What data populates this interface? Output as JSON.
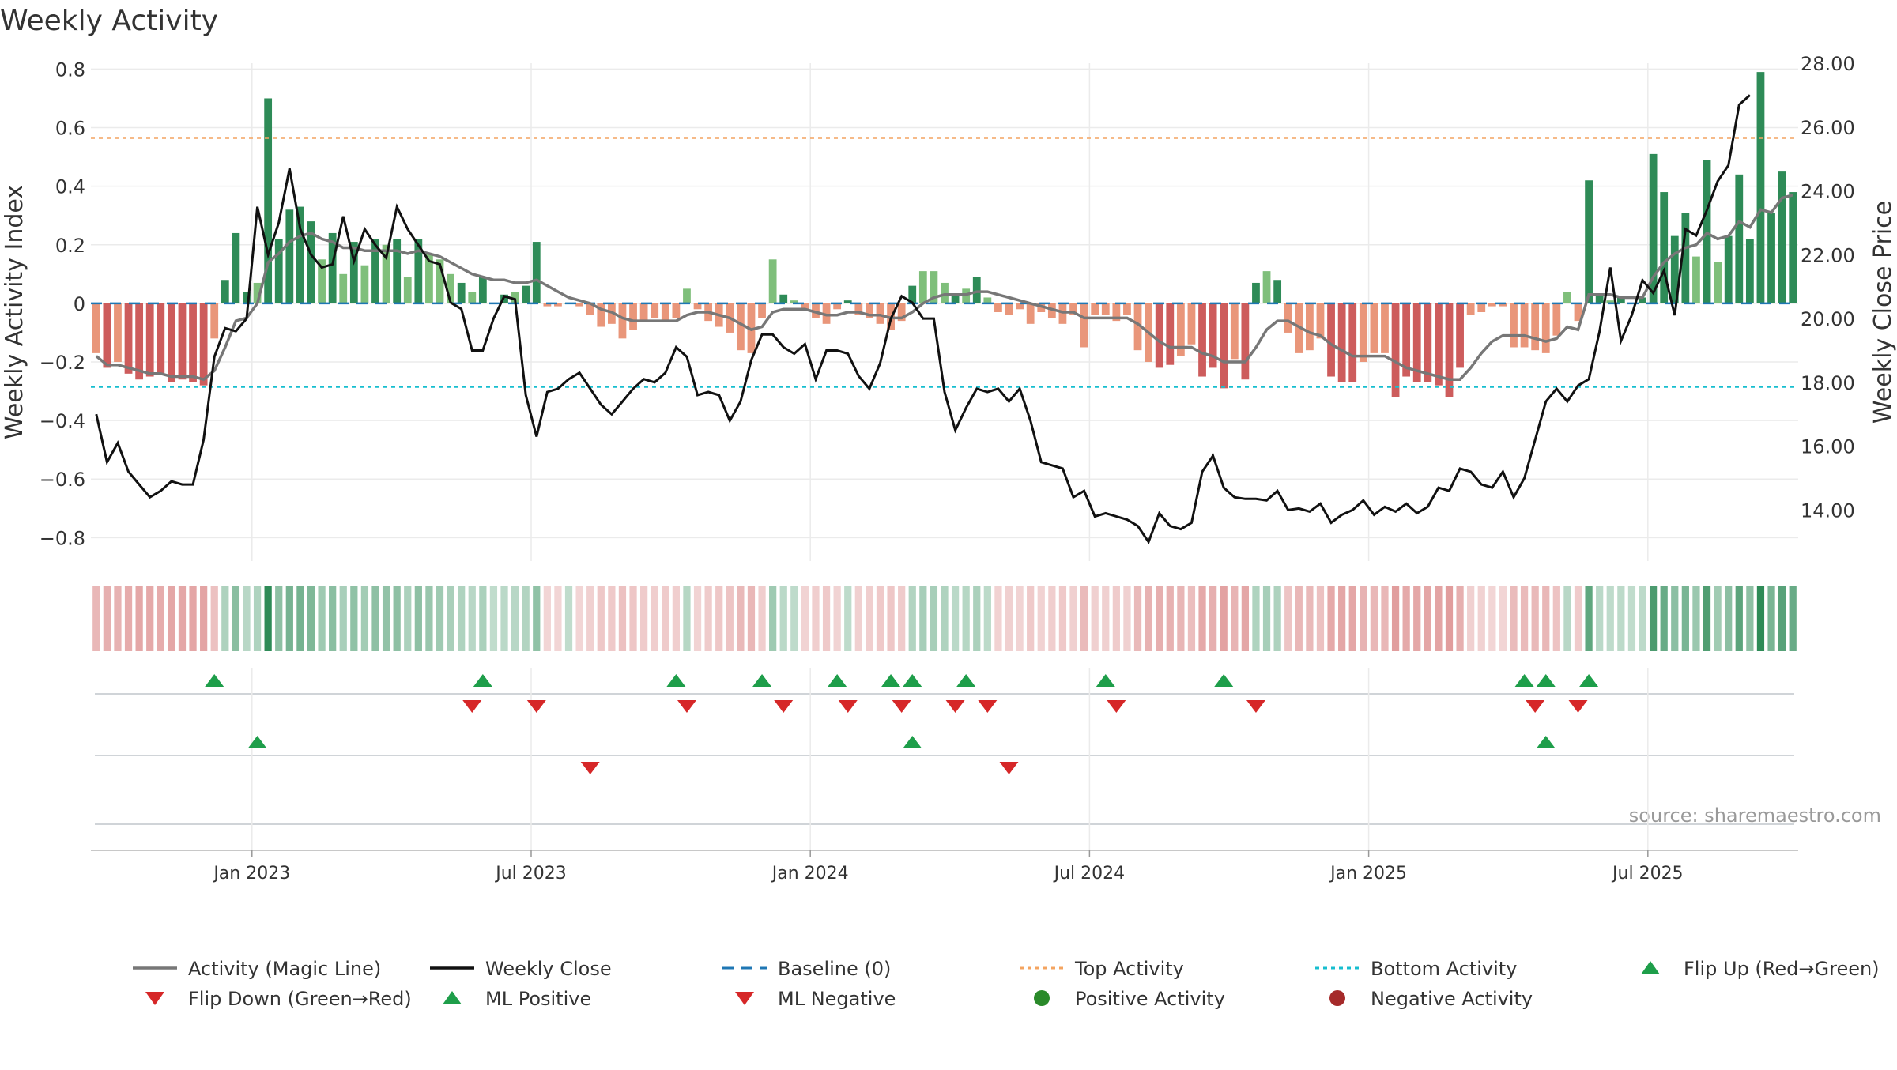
{
  "chart_data": {
    "type": "bar+line",
    "title": "Weekly Activity",
    "source": "source: sharemaestro.com",
    "ylabel_left": "Weekly Activity Index",
    "ylabel_right": "Weekly Close Price",
    "left_axis": {
      "ylim": [
        -0.88,
        0.82
      ],
      "ticks": [
        0.8,
        0.6,
        0.4,
        0.2,
        0,
        -0.2,
        -0.4,
        -0.6,
        -0.8
      ],
      "tick_labels": [
        "0.8",
        "0.6",
        "0.4",
        "0.2",
        "0",
        "−0.2",
        "−0.4",
        "−0.6",
        "−0.8"
      ]
    },
    "right_axis": {
      "ylim": [
        12.4,
        28.0
      ],
      "ticks": [
        28,
        26,
        24,
        22,
        20,
        18,
        16,
        14
      ],
      "tick_labels": [
        "28.00",
        "26.00",
        "24.00",
        "22.00",
        "20.00",
        "18.00",
        "16.00",
        "14.00"
      ]
    },
    "x_ticks": [
      {
        "index": 15,
        "label": "Jan 2023"
      },
      {
        "index": 41,
        "label": "Jul 2023"
      },
      {
        "index": 67,
        "label": "Jan 2024"
      },
      {
        "index": 93,
        "label": "Jul 2024"
      },
      {
        "index": 119,
        "label": "Jan 2025"
      },
      {
        "index": 145,
        "label": "Jul 2025"
      }
    ],
    "top_activity": 0.565,
    "bottom_activity": -0.285,
    "activity": [
      -0.17,
      -0.22,
      -0.2,
      -0.24,
      -0.26,
      -0.25,
      -0.24,
      -0.27,
      -0.26,
      -0.27,
      -0.28,
      -0.12,
      0.08,
      0.24,
      0.04,
      0.07,
      0.7,
      0.22,
      0.32,
      0.33,
      0.28,
      0.15,
      0.24,
      0.1,
      0.21,
      0.13,
      0.22,
      0.2,
      0.22,
      0.09,
      0.22,
      0.17,
      0.15,
      0.1,
      0.07,
      0.04,
      0.09,
      0.0,
      0.03,
      0.04,
      0.06,
      0.21,
      -0.01,
      -0.01,
      0.0,
      -0.01,
      -0.04,
      -0.08,
      -0.07,
      -0.12,
      -0.09,
      -0.06,
      -0.05,
      -0.06,
      -0.05,
      0.05,
      -0.02,
      -0.06,
      -0.08,
      -0.1,
      -0.16,
      -0.17,
      -0.05,
      0.15,
      0.03,
      0.01,
      -0.02,
      -0.05,
      -0.07,
      -0.02,
      0.01,
      -0.04,
      -0.05,
      -0.07,
      -0.09,
      -0.06,
      0.06,
      0.11,
      0.11,
      0.07,
      0.03,
      0.05,
      0.09,
      0.02,
      -0.03,
      -0.04,
      -0.02,
      -0.07,
      -0.03,
      -0.05,
      -0.07,
      -0.04,
      -0.15,
      -0.04,
      -0.04,
      -0.06,
      -0.04,
      -0.16,
      -0.2,
      -0.22,
      -0.21,
      -0.18,
      -0.14,
      -0.25,
      -0.22,
      -0.29,
      -0.19,
      -0.26,
      0.07,
      0.11,
      0.08,
      -0.1,
      -0.17,
      -0.16,
      -0.12,
      -0.25,
      -0.27,
      -0.27,
      -0.2,
      -0.17,
      -0.17,
      -0.32,
      -0.25,
      -0.27,
      -0.27,
      -0.28,
      -0.32,
      -0.22,
      -0.04,
      -0.03,
      -0.01,
      -0.01,
      -0.15,
      -0.15,
      -0.16,
      -0.17,
      -0.11,
      0.04,
      -0.06,
      0.42,
      0.03,
      0.01,
      0.02,
      0.0,
      0.02,
      0.51,
      0.38,
      0.23,
      0.31,
      0.16,
      0.49,
      0.14,
      0.23,
      0.44,
      0.22,
      0.79,
      0.31,
      0.45,
      0.38
    ],
    "magic_line": [
      -0.18,
      -0.21,
      -0.21,
      -0.22,
      -0.23,
      -0.24,
      -0.24,
      -0.25,
      -0.25,
      -0.25,
      -0.26,
      -0.23,
      -0.15,
      -0.06,
      -0.05,
      0.0,
      0.14,
      0.17,
      0.21,
      0.23,
      0.24,
      0.22,
      0.21,
      0.19,
      0.19,
      0.18,
      0.18,
      0.18,
      0.18,
      0.17,
      0.18,
      0.17,
      0.16,
      0.14,
      0.12,
      0.1,
      0.09,
      0.08,
      0.08,
      0.07,
      0.07,
      0.08,
      0.06,
      0.04,
      0.02,
      0.01,
      0.0,
      -0.02,
      -0.03,
      -0.05,
      -0.06,
      -0.06,
      -0.06,
      -0.06,
      -0.06,
      -0.04,
      -0.03,
      -0.03,
      -0.04,
      -0.05,
      -0.07,
      -0.09,
      -0.08,
      -0.03,
      -0.02,
      -0.02,
      -0.02,
      -0.03,
      -0.04,
      -0.04,
      -0.03,
      -0.03,
      -0.04,
      -0.04,
      -0.05,
      -0.05,
      -0.03,
      0.0,
      0.02,
      0.03,
      0.03,
      0.03,
      0.04,
      0.04,
      0.03,
      0.02,
      0.01,
      0.0,
      -0.01,
      -0.02,
      -0.03,
      -0.03,
      -0.05,
      -0.05,
      -0.05,
      -0.05,
      -0.05,
      -0.07,
      -0.1,
      -0.13,
      -0.15,
      -0.15,
      -0.15,
      -0.17,
      -0.18,
      -0.2,
      -0.2,
      -0.2,
      -0.15,
      -0.09,
      -0.06,
      -0.06,
      -0.08,
      -0.1,
      -0.11,
      -0.14,
      -0.16,
      -0.18,
      -0.18,
      -0.18,
      -0.18,
      -0.2,
      -0.22,
      -0.23,
      -0.24,
      -0.25,
      -0.26,
      -0.26,
      -0.22,
      -0.17,
      -0.13,
      -0.11,
      -0.11,
      -0.11,
      -0.12,
      -0.13,
      -0.12,
      -0.08,
      -0.09,
      0.03,
      0.03,
      0.03,
      0.02,
      0.02,
      0.02,
      0.09,
      0.14,
      0.17,
      0.19,
      0.2,
      0.24,
      0.22,
      0.23,
      0.28,
      0.26,
      0.32,
      0.31,
      0.36,
      0.37
    ],
    "weekly_close": [
      17.0,
      15.5,
      16.1,
      15.2,
      14.8,
      14.4,
      14.6,
      14.9,
      14.8,
      14.8,
      16.2,
      18.8,
      19.7,
      19.6,
      20.0,
      23.5,
      22.0,
      23.0,
      24.7,
      22.8,
      22.0,
      21.6,
      21.7,
      23.2,
      21.8,
      22.8,
      22.3,
      21.9,
      23.5,
      22.8,
      22.3,
      21.8,
      21.7,
      20.5,
      20.3,
      19.0,
      19.0,
      20.0,
      20.7,
      20.6,
      17.6,
      16.3,
      17.7,
      17.8,
      18.1,
      18.3,
      17.8,
      17.3,
      17.0,
      17.4,
      17.8,
      18.1,
      18.0,
      18.3,
      19.1,
      18.8,
      17.6,
      17.7,
      17.6,
      16.8,
      17.4,
      18.7,
      19.5,
      19.5,
      19.1,
      18.9,
      19.2,
      18.1,
      19.0,
      19.0,
      18.9,
      18.2,
      17.8,
      18.6,
      20.0,
      20.7,
      20.5,
      20.0,
      20.0,
      17.7,
      16.5,
      17.2,
      17.8,
      17.7,
      17.8,
      17.4,
      17.8,
      16.8,
      15.5,
      15.4,
      15.3,
      14.4,
      14.6,
      13.8,
      13.9,
      13.8,
      13.7,
      13.5,
      13.0,
      13.9,
      13.5,
      13.4,
      13.6,
      15.2,
      15.7,
      14.7,
      14.4,
      14.35,
      14.35,
      14.3,
      14.6,
      14.0,
      14.05,
      13.95,
      14.2,
      13.6,
      13.85,
      14.0,
      14.3,
      13.85,
      14.1,
      13.95,
      14.2,
      13.9,
      14.1,
      14.7,
      14.6,
      15.3,
      15.2,
      14.8,
      14.7,
      15.2,
      14.4,
      15.0,
      16.2,
      17.4,
      17.8,
      17.4,
      17.9,
      18.1,
      19.6,
      21.6,
      19.3,
      20.1,
      21.2,
      20.8,
      21.5,
      20.1,
      22.8,
      22.6,
      23.4,
      24.3,
      24.8,
      26.7,
      27.0
    ],
    "panel_colors": {
      "strong_positive": "#2e8b57",
      "light_positive": "#7fbf7b",
      "strong_negative": "#cd5c5c",
      "light_negative": "#e9967a"
    },
    "flips": {
      "up": [
        11,
        36,
        54,
        62,
        69,
        74,
        76,
        81,
        94,
        105,
        133,
        135,
        139
      ],
      "down": [
        35,
        41,
        55,
        64,
        70,
        75,
        80,
        83,
        95,
        108,
        134,
        138
      ]
    },
    "ml_signals": {
      "positive": [
        15,
        76,
        135
      ],
      "negative": [
        46,
        85
      ]
    },
    "legend": [
      {
        "label": "Activity (Magic Line)",
        "symbol": "line",
        "color": "#777777"
      },
      {
        "label": "Weekly Close",
        "symbol": "line",
        "color": "#111111"
      },
      {
        "label": "Baseline (0)",
        "symbol": "dash",
        "color": "#1f77b4"
      },
      {
        "label": "Top Activity",
        "symbol": "dot-orange",
        "color": "#f4a460"
      },
      {
        "label": "Bottom Activity",
        "symbol": "dot-cyan",
        "color": "#17becf"
      },
      {
        "label": "Flip Up (Red→Green)",
        "symbol": "tri-up",
        "color": "#1e9e4a"
      },
      {
        "label": "Flip Down (Green→Red)",
        "symbol": "tri-down",
        "color": "#d62728"
      },
      {
        "label": "ML Positive",
        "symbol": "tri-up",
        "color": "#1e9e4a"
      },
      {
        "label": "ML Negative",
        "symbol": "tri-down",
        "color": "#d62728"
      },
      {
        "label": "Positive Activity",
        "symbol": "circle",
        "color": "#2a8a2a"
      },
      {
        "label": "Negative Activity",
        "symbol": "circle",
        "color": "#a52a2a"
      }
    ]
  }
}
